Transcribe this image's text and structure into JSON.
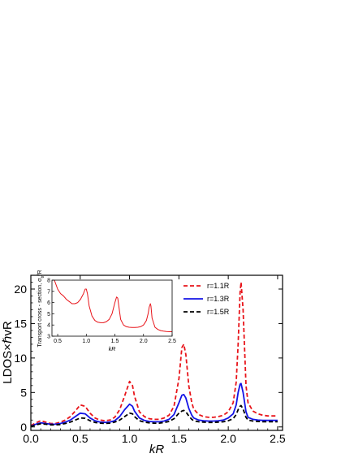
{
  "chart_data": [
    {
      "type": "line",
      "xlabel": "kR",
      "ylabel": "LDOS×ℏvR",
      "xlim": [
        0,
        2.55
      ],
      "ylim": [
        -0.5,
        22
      ],
      "xticks": [
        0.0,
        0.5,
        1.0,
        1.5,
        2.0,
        2.5
      ],
      "xtick_labels": [
        "0.0",
        "0.5",
        "1.0",
        "1.5",
        "2.0",
        "2.5"
      ],
      "yticks": [
        0,
        5,
        10,
        15,
        20
      ],
      "ytick_labels": [
        "0",
        "5",
        "10",
        "15",
        "20"
      ],
      "legend_position": "top-right",
      "series": [
        {
          "name": "r=1.1R",
          "color": "#e8141a",
          "style": "dashed",
          "x": [
            0.0,
            0.05,
            0.1,
            0.15,
            0.2,
            0.25,
            0.3,
            0.35,
            0.4,
            0.45,
            0.5,
            0.55,
            0.6,
            0.65,
            0.7,
            0.75,
            0.8,
            0.85,
            0.9,
            0.95,
            1.0,
            1.03,
            1.05,
            1.1,
            1.15,
            1.2,
            1.25,
            1.3,
            1.35,
            1.4,
            1.45,
            1.5,
            1.53,
            1.55,
            1.57,
            1.6,
            1.63,
            1.65,
            1.7,
            1.75,
            1.8,
            1.85,
            1.9,
            1.95,
            2.0,
            2.05,
            2.08,
            2.1,
            2.12,
            2.13,
            2.15,
            2.18,
            2.2,
            2.25,
            2.3,
            2.35,
            2.4,
            2.45,
            2.5
          ],
          "y": [
            0.2,
            0.6,
            0.9,
            0.7,
            0.5,
            0.5,
            0.7,
            1.0,
            1.5,
            2.3,
            3.2,
            3.0,
            2.0,
            1.3,
            1.0,
            0.9,
            1.0,
            1.4,
            2.5,
            4.5,
            6.6,
            6.0,
            4.5,
            2.2,
            1.5,
            1.2,
            1.1,
            1.1,
            1.3,
            1.7,
            3.0,
            7.0,
            11.5,
            12.0,
            10.5,
            6.0,
            3.5,
            2.6,
            1.8,
            1.5,
            1.4,
            1.4,
            1.5,
            1.7,
            2.2,
            3.5,
            6.5,
            12.0,
            19.5,
            21.0,
            17.0,
            6.0,
            3.5,
            2.3,
            1.9,
            1.7,
            1.6,
            1.6,
            1.6
          ]
        },
        {
          "name": "r=1.3R",
          "color": "#1414e6",
          "style": "solid",
          "x": [
            0.0,
            0.05,
            0.1,
            0.15,
            0.2,
            0.25,
            0.3,
            0.35,
            0.4,
            0.45,
            0.5,
            0.55,
            0.6,
            0.65,
            0.7,
            0.75,
            0.8,
            0.85,
            0.9,
            0.95,
            1.0,
            1.03,
            1.05,
            1.1,
            1.15,
            1.2,
            1.25,
            1.3,
            1.35,
            1.4,
            1.45,
            1.5,
            1.53,
            1.55,
            1.57,
            1.6,
            1.63,
            1.65,
            1.7,
            1.75,
            1.8,
            1.85,
            1.9,
            1.95,
            2.0,
            2.05,
            2.08,
            2.1,
            2.12,
            2.13,
            2.15,
            2.18,
            2.2,
            2.25,
            2.3,
            2.35,
            2.4,
            2.45,
            2.5
          ],
          "y": [
            0.1,
            0.4,
            0.6,
            0.5,
            0.4,
            0.4,
            0.5,
            0.7,
            1.0,
            1.5,
            2.0,
            1.9,
            1.3,
            0.9,
            0.7,
            0.65,
            0.7,
            0.9,
            1.5,
            2.5,
            3.3,
            3.0,
            2.3,
            1.3,
            0.95,
            0.8,
            0.75,
            0.75,
            0.85,
            1.1,
            1.8,
            3.5,
            4.6,
            4.7,
            4.2,
            2.7,
            1.7,
            1.3,
            1.0,
            0.9,
            0.85,
            0.85,
            0.9,
            1.0,
            1.3,
            1.9,
            3.2,
            5.0,
            6.2,
            6.3,
            5.0,
            2.2,
            1.4,
            1.1,
            1.0,
            0.95,
            0.95,
            0.95,
            0.95
          ]
        },
        {
          "name": "r=1.5R",
          "color": "#000000",
          "style": "dashed",
          "x": [
            0.0,
            0.05,
            0.1,
            0.15,
            0.2,
            0.25,
            0.3,
            0.35,
            0.4,
            0.45,
            0.5,
            0.55,
            0.6,
            0.65,
            0.7,
            0.75,
            0.8,
            0.85,
            0.9,
            0.95,
            1.0,
            1.03,
            1.05,
            1.1,
            1.15,
            1.2,
            1.25,
            1.3,
            1.35,
            1.4,
            1.45,
            1.5,
            1.53,
            1.55,
            1.57,
            1.6,
            1.63,
            1.65,
            1.7,
            1.75,
            1.8,
            1.85,
            1.9,
            1.95,
            2.0,
            2.05,
            2.08,
            2.1,
            2.12,
            2.13,
            2.15,
            2.18,
            2.2,
            2.25,
            2.3,
            2.35,
            2.4,
            2.45,
            2.5
          ],
          "y": [
            0.05,
            0.3,
            0.45,
            0.4,
            0.3,
            0.3,
            0.35,
            0.5,
            0.7,
            1.0,
            1.3,
            1.25,
            0.9,
            0.65,
            0.55,
            0.5,
            0.55,
            0.7,
            1.0,
            1.5,
            2.0,
            1.9,
            1.5,
            0.9,
            0.7,
            0.6,
            0.55,
            0.55,
            0.65,
            0.8,
            1.2,
            2.0,
            2.3,
            2.4,
            2.2,
            1.6,
            1.1,
            0.9,
            0.75,
            0.7,
            0.65,
            0.65,
            0.7,
            0.75,
            0.9,
            1.2,
            1.8,
            2.5,
            3.0,
            3.1,
            2.6,
            1.4,
            1.0,
            0.85,
            0.8,
            0.75,
            0.75,
            0.75,
            0.75
          ]
        }
      ]
    },
    {
      "type": "line",
      "xlabel": "kR",
      "ylabel": "Transport cross - section, σ_tr/R",
      "ylabel_main": "Transport cross - section, σ",
      "ylabel_sub": "tr",
      "ylabel_tail": "/R",
      "xlim": [
        0.4,
        2.5
      ],
      "ylim": [
        3,
        8
      ],
      "xticks": [
        0.5,
        1.0,
        1.5,
        2.0,
        2.5
      ],
      "xtick_labels": [
        "0.5",
        "1.0",
        "1.5",
        "2.0",
        "2.5"
      ],
      "yticks": [
        3,
        4,
        5,
        6,
        7,
        8
      ],
      "ytick_labels": [
        "3",
        "4",
        "5",
        "6",
        "7",
        "8"
      ],
      "series": [
        {
          "color": "#e8141a",
          "x": [
            0.4,
            0.45,
            0.5,
            0.55,
            0.6,
            0.65,
            0.7,
            0.75,
            0.8,
            0.85,
            0.9,
            0.95,
            0.98,
            1.0,
            1.02,
            1.05,
            1.1,
            1.15,
            1.2,
            1.25,
            1.3,
            1.35,
            1.4,
            1.45,
            1.5,
            1.53,
            1.55,
            1.57,
            1.6,
            1.65,
            1.7,
            1.75,
            1.8,
            1.85,
            1.9,
            1.95,
            2.0,
            2.05,
            2.08,
            2.1,
            2.12,
            2.13,
            2.15,
            2.2,
            2.25,
            2.3,
            2.35,
            2.4,
            2.45,
            2.5
          ],
          "y": [
            8.6,
            7.9,
            7.2,
            6.8,
            6.6,
            6.3,
            6.1,
            5.9,
            5.9,
            6.0,
            6.3,
            6.8,
            7.2,
            7.2,
            6.8,
            5.7,
            4.8,
            4.4,
            4.25,
            4.2,
            4.2,
            4.3,
            4.5,
            5.0,
            6.0,
            6.5,
            6.4,
            5.6,
            4.5,
            4.0,
            3.85,
            3.8,
            3.78,
            3.78,
            3.8,
            3.85,
            4.0,
            4.4,
            5.0,
            5.6,
            5.9,
            5.7,
            4.6,
            3.8,
            3.6,
            3.5,
            3.45,
            3.42,
            3.4,
            3.4
          ]
        }
      ]
    }
  ]
}
